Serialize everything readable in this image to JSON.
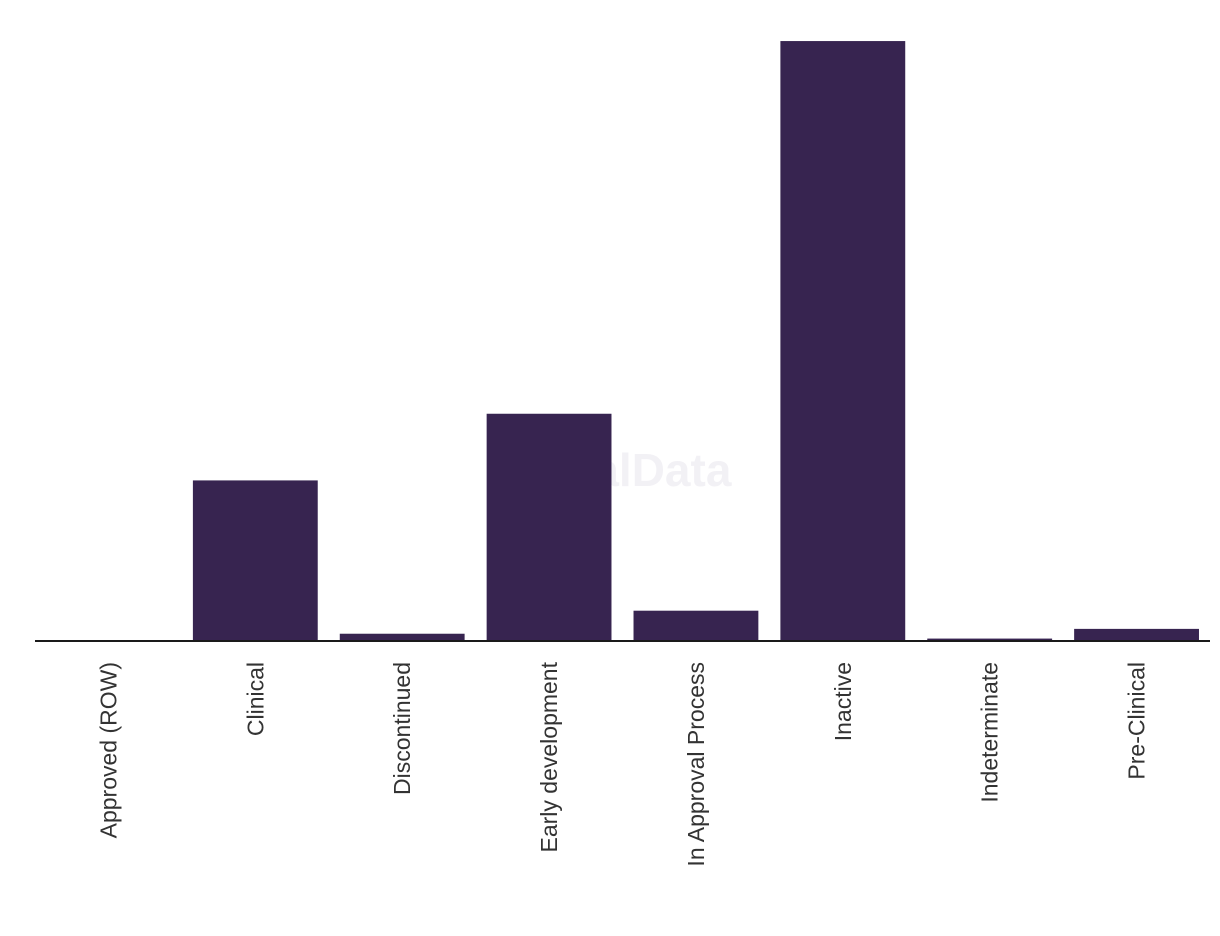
{
  "chart_data": {
    "type": "bar",
    "categories": [
      "Approved (ROW)",
      "Clinical",
      "Discontinued",
      "Early development",
      "In Approval Process",
      "Inactive",
      "Indeterminate",
      "Pre-Clinical"
    ],
    "values": [
      0,
      26.5,
      1.2,
      37.5,
      5,
      99,
      0.4,
      2
    ],
    "ylim": [
      0,
      100
    ],
    "grid": false,
    "legend": "none",
    "xlabel": "",
    "ylabel": ""
  },
  "watermark": "GlobalData",
  "colors": {
    "bar": "#372450",
    "axis": "#1a1a1a",
    "label": "#333333",
    "watermark": "#e9e6ee"
  }
}
